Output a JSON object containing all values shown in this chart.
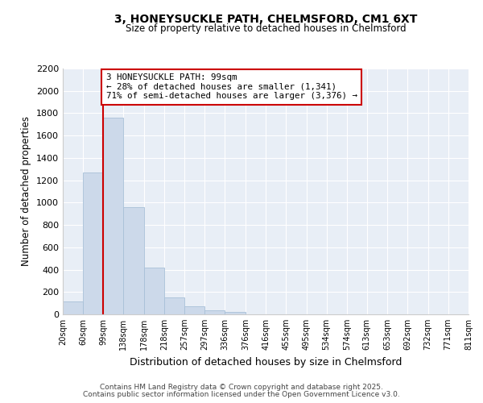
{
  "title_line1": "3, HONEYSUCKLE PATH, CHELMSFORD, CM1 6XT",
  "title_line2": "Size of property relative to detached houses in Chelmsford",
  "xlabel": "Distribution of detached houses by size in Chelmsford",
  "ylabel": "Number of detached properties",
  "bar_color": "#ccd9ea",
  "bar_edge_color": "#a8c0d8",
  "property_line_color": "#cc0000",
  "annotation_box_color": "#cc0000",
  "background_color": "#ffffff",
  "plot_bg_color": "#e8eef6",
  "property_size": 99,
  "annotation_text": "3 HONEYSUCKLE PATH: 99sqm\n← 28% of detached houses are smaller (1,341)\n71% of semi-detached houses are larger (3,376) →",
  "footer_line1": "Contains HM Land Registry data © Crown copyright and database right 2025.",
  "footer_line2": "Contains public sector information licensed under the Open Government Licence v3.0.",
  "bins": [
    20,
    60,
    99,
    138,
    178,
    218,
    257,
    297,
    336,
    376,
    416,
    455,
    495,
    534,
    574,
    613,
    653,
    692,
    732,
    771,
    811
  ],
  "counts": [
    115,
    1270,
    1760,
    960,
    420,
    155,
    75,
    35,
    20,
    0,
    0,
    0,
    0,
    0,
    0,
    0,
    0,
    0,
    0,
    0
  ],
  "ylim": [
    0,
    2200
  ],
  "yticks": [
    0,
    200,
    400,
    600,
    800,
    1000,
    1200,
    1400,
    1600,
    1800,
    2000,
    2200
  ]
}
